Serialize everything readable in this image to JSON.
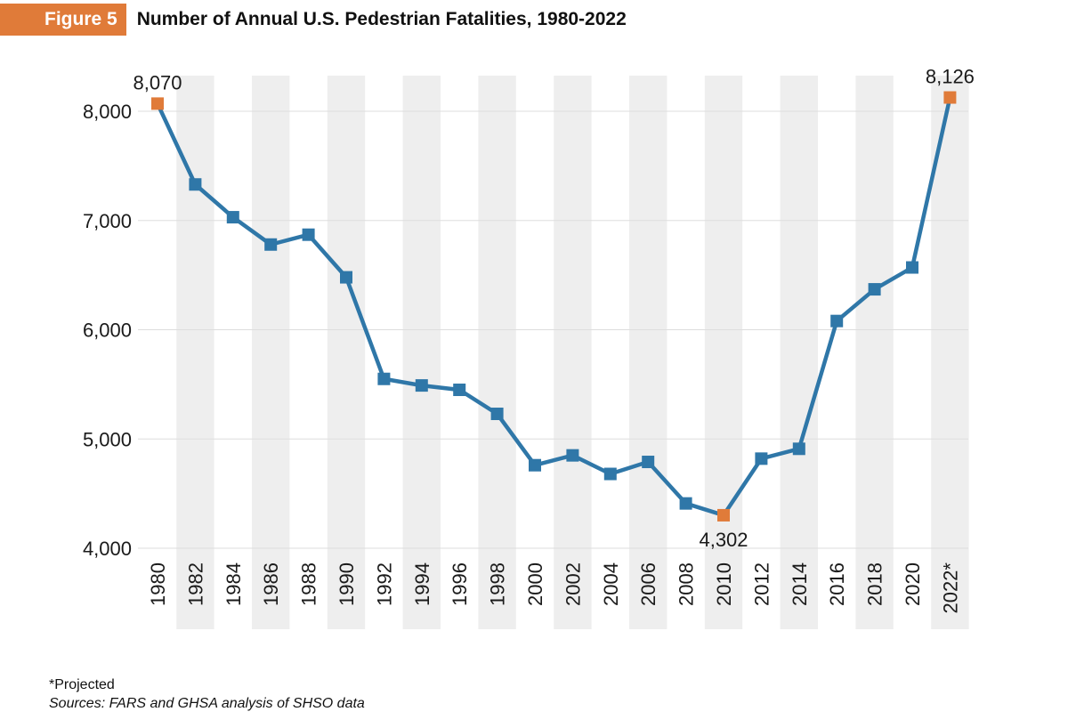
{
  "header": {
    "figure_label": "Figure 5",
    "title": "Number of Annual U.S. Pedestrian Fatalities, 1980-2022"
  },
  "footer": {
    "note": "*Projected",
    "sources": "Sources: FARS and GHSA analysis of SHSO data"
  },
  "colors": {
    "line": "#2f77a8",
    "marker": "#2f77a8",
    "highlight": "#e07b39",
    "band": "#eeeeee",
    "grid": "#dddddd",
    "figure_label_bg": "#e07b39"
  },
  "chart_data": {
    "type": "line",
    "title": "Number of Annual U.S. Pedestrian Fatalities, 1980-2022",
    "xlabel": "",
    "ylabel": "",
    "ylim": [
      4000,
      8300
    ],
    "yticks": [
      4000,
      5000,
      6000,
      7000,
      8000
    ],
    "ytick_labels": [
      "4,000",
      "5,000",
      "6,000",
      "7,000",
      "8,000"
    ],
    "x": [
      1980,
      1982,
      1984,
      1986,
      1988,
      1990,
      1992,
      1994,
      1996,
      1998,
      2000,
      2002,
      2004,
      2006,
      2008,
      2010,
      2012,
      2014,
      2016,
      2018,
      2020,
      2022
    ],
    "xtick_labels": [
      "1980",
      "1982",
      "1984",
      "1986",
      "1988",
      "1990",
      "1992",
      "1994",
      "1996",
      "1998",
      "2000",
      "2002",
      "2004",
      "2006",
      "2008",
      "2010",
      "2012",
      "2014",
      "2016",
      "2018",
      "2020",
      "2022*"
    ],
    "series": [
      {
        "values": [
          8070,
          7330,
          7030,
          6780,
          6870,
          6480,
          5550,
          5490,
          5450,
          5230,
          4760,
          4850,
          4680,
          4790,
          4410,
          4302,
          4820,
          4910,
          6080,
          6370,
          6570,
          8126
        ]
      }
    ],
    "highlighted_points": [
      {
        "x": 1980,
        "y": 8070,
        "label": "8,070"
      },
      {
        "x": 2010,
        "y": 4302,
        "label": "4,302"
      },
      {
        "x": 2022,
        "y": 8126,
        "label": "8,126"
      }
    ],
    "grid": true,
    "alternating_bands": true
  }
}
